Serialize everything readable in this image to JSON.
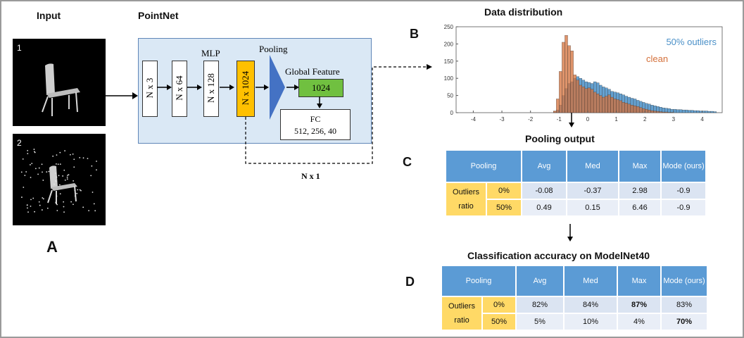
{
  "panel_a": {
    "input_label": "Input",
    "label_a": "A",
    "sample1": "1",
    "sample2": "2"
  },
  "pointnet": {
    "title": "PointNet",
    "mlp_label": "MLP",
    "pooling_label": "Pooling",
    "global_feature_label": "Global Feature",
    "blocks": [
      "N x 3",
      "N x 64",
      "N x 128",
      "N x 1024"
    ],
    "feature_dim": "1024",
    "fc_title": "FC",
    "fc_sizes": "512, 256, 40",
    "n_x_1": "N x 1",
    "colors": {
      "panel": "#dae8f5",
      "highlight": "#ffc000",
      "feature": "#70c040",
      "triangle": "#4472c4"
    }
  },
  "panel_b": {
    "label": "B",
    "title": "Data distribution"
  },
  "chart_data": {
    "type": "bar",
    "title": "Data distribution",
    "x_ticks": [
      -4,
      -3,
      -2,
      -1,
      0,
      1,
      2,
      3,
      4
    ],
    "y_ticks": [
      0,
      50,
      100,
      150,
      200,
      250
    ],
    "xlim": [
      -4.6,
      4.7
    ],
    "ylim": [
      0,
      250
    ],
    "bin_width": 0.1,
    "series": [
      {
        "name": "50% outliers",
        "color": "#4a90c8",
        "x": [
          -1.2,
          -1.1,
          -1.0,
          -0.9,
          -0.8,
          -0.7,
          -0.6,
          -0.5,
          -0.4,
          -0.3,
          -0.2,
          -0.1,
          0.0,
          0.1,
          0.2,
          0.3,
          0.4,
          0.5,
          0.6,
          0.7,
          0.8,
          0.9,
          1.0,
          1.1,
          1.2,
          1.3,
          1.4,
          1.5,
          1.6,
          1.7,
          1.8,
          1.9,
          2.0,
          2.1,
          2.2,
          2.3,
          2.4,
          2.5,
          2.6,
          2.7,
          2.8,
          2.9,
          3.0,
          3.1,
          3.2,
          3.3,
          3.4,
          3.5,
          3.6,
          3.7,
          3.8,
          3.9,
          4.0,
          4.1,
          4.2,
          4.3,
          4.4
        ],
        "values": [
          3,
          8,
          22,
          50,
          70,
          85,
          90,
          100,
          105,
          100,
          95,
          90,
          88,
          85,
          90,
          87,
          80,
          75,
          72,
          68,
          62,
          60,
          58,
          55,
          52,
          48,
          45,
          42,
          40,
          36,
          33,
          30,
          27,
          25,
          22,
          20,
          18,
          16,
          14,
          13,
          12,
          10,
          10,
          9,
          9,
          8,
          8,
          7,
          7,
          6,
          6,
          5,
          5,
          5,
          4,
          4,
          3
        ]
      },
      {
        "name": "clean",
        "color": "#d4703a",
        "x": [
          -1.2,
          -1.1,
          -1.0,
          -0.9,
          -0.8,
          -0.7,
          -0.6,
          -0.5,
          -0.4,
          -0.3,
          -0.2,
          -0.1,
          0.0,
          0.1,
          0.2,
          0.3,
          0.4,
          0.5,
          0.6,
          0.7,
          0.8,
          0.9,
          1.0,
          1.1,
          1.2,
          1.3,
          1.4,
          1.5,
          1.6,
          1.7,
          1.8,
          1.9,
          2.0,
          2.1,
          2.2,
          2.3,
          2.4,
          2.5,
          2.6,
          2.7,
          2.8,
          2.9
        ],
        "values": [
          5,
          40,
          120,
          205,
          225,
          195,
          180,
          110,
          95,
          80,
          75,
          70,
          72,
          68,
          60,
          55,
          50,
          45,
          48,
          52,
          45,
          40,
          38,
          35,
          30,
          28,
          25,
          22,
          20,
          18,
          15,
          12,
          10,
          8,
          6,
          5,
          4,
          3,
          2,
          2,
          1,
          1
        ]
      }
    ]
  },
  "panel_c": {
    "label": "C",
    "title": "Pooling output",
    "header": [
      "Pooling",
      "Avg",
      "Med",
      "Max",
      "Mode (ours)"
    ],
    "row_label_1": "Outliers",
    "row_label_2": "ratio",
    "rows": [
      {
        "ratio": "0%",
        "values": [
          "-0.08",
          "-0.37",
          "2.98",
          "-0.9"
        ]
      },
      {
        "ratio": "50%",
        "values": [
          "0.49",
          "0.15",
          "6.46",
          "-0.9"
        ]
      }
    ]
  },
  "panel_d": {
    "label": "D",
    "title": "Classification accuracy on ModelNet40",
    "header": [
      "Pooling",
      "Avg",
      "Med",
      "Max",
      "Mode (ours)"
    ],
    "row_label_1": "Outliers",
    "row_label_2": "ratio",
    "rows": [
      {
        "ratio": "0%",
        "values": [
          "82%",
          "84%",
          "87%",
          "83%"
        ]
      },
      {
        "ratio": "50%",
        "values": [
          "5%",
          "10%",
          "4%",
          "70%"
        ]
      }
    ]
  }
}
